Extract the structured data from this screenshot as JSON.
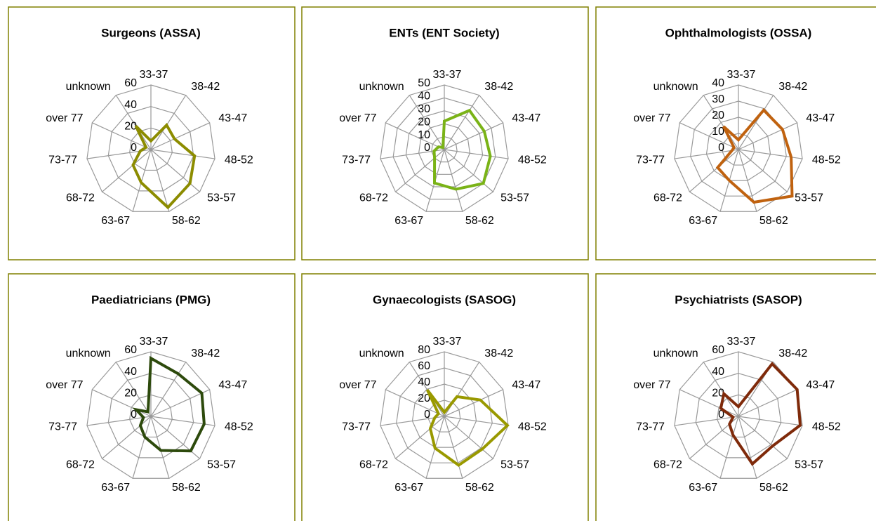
{
  "chart_data": [
    {
      "type": "radar",
      "title": "Surgeons (ASSA)",
      "categories": [
        "33-37",
        "38-42",
        "43-47",
        "48-52",
        "53-57",
        "58-62",
        "63-67",
        "68-72",
        "73-77",
        "over 77",
        "unknown"
      ],
      "values": [
        8,
        27,
        24,
        41,
        48,
        56,
        32,
        22,
        10,
        5,
        26
      ],
      "color": "#8c8c00",
      "ylim": [
        0,
        60
      ],
      "yticks": [
        0,
        20,
        40,
        60
      ],
      "grid": true
    },
    {
      "type": "radar",
      "title": "ENTs (ENT Society)",
      "categories": [
        "33-37",
        "38-42",
        "43-47",
        "48-52",
        "53-57",
        "58-62",
        "63-67",
        "68-72",
        "73-77",
        "over 77",
        "unknown"
      ],
      "values": [
        22,
        36,
        34,
        36,
        40,
        32,
        27,
        10,
        8,
        5,
        2
      ],
      "color": "#7ab317",
      "ylim": [
        0,
        50
      ],
      "yticks": [
        0,
        10,
        20,
        30,
        40,
        50
      ],
      "grid": true
    },
    {
      "type": "radar",
      "title": "Ophthalmologists (OSSA)",
      "categories": [
        "33-37",
        "38-42",
        "43-47",
        "48-52",
        "53-57",
        "58-62",
        "63-67",
        "68-72",
        "73-77",
        "over 77",
        "unknown"
      ],
      "values": [
        6,
        29,
        30,
        33,
        44,
        34,
        20,
        17,
        4,
        3,
        17
      ],
      "color": "#c0620f",
      "ylim": [
        0,
        40
      ],
      "yticks": [
        0,
        10,
        20,
        30,
        40
      ],
      "grid": true
    },
    {
      "type": "radar",
      "title": "Paediatricians (PMG)",
      "categories": [
        "33-37",
        "38-42",
        "43-47",
        "48-52",
        "53-57",
        "58-62",
        "63-67",
        "68-72",
        "73-77",
        "over 77",
        "unknown"
      ],
      "values": [
        54,
        47,
        52,
        50,
        49,
        33,
        20,
        13,
        7,
        15,
        5
      ],
      "color": "#2d4a0c",
      "ylim": [
        0,
        60
      ],
      "yticks": [
        0,
        20,
        40,
        60
      ],
      "grid": true
    },
    {
      "type": "radar",
      "title": "Gynaecologists (SASOG)",
      "categories": [
        "33-37",
        "38-42",
        "43-47",
        "48-52",
        "53-57",
        "58-62",
        "63-67",
        "68-72",
        "73-77",
        "over 77",
        "unknown"
      ],
      "values": [
        5,
        29,
        49,
        79,
        62,
        63,
        41,
        23,
        12,
        8,
        39
      ],
      "color": "#999900",
      "ylim": [
        0,
        80
      ],
      "yticks": [
        0,
        20,
        40,
        60,
        80
      ],
      "grid": true
    },
    {
      "type": "radar",
      "title": "Psychiatrists (SASOP)",
      "categories": [
        "33-37",
        "38-42",
        "43-47",
        "48-52",
        "53-57",
        "58-62",
        "63-67",
        "68-72",
        "73-77",
        "over 77",
        "unknown"
      ],
      "values": [
        9,
        58,
        60,
        58,
        42,
        46,
        18,
        11,
        5,
        18,
        25
      ],
      "color": "#7f2a0a",
      "ylim": [
        0,
        60
      ],
      "yticks": [
        0,
        20,
        40,
        60
      ],
      "grid": true
    }
  ]
}
